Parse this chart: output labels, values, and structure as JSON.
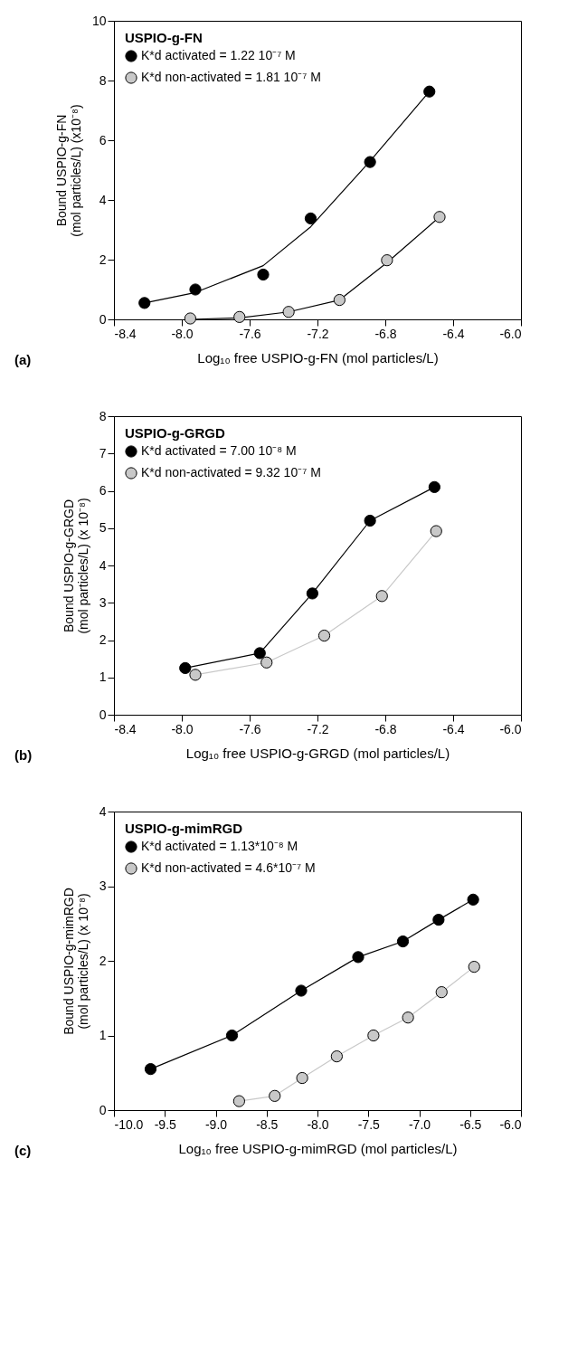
{
  "chart_data": [
    {
      "type": "scatter",
      "xlabel": "Log₁₀ free USPIO-g-FN (mol particles/L)",
      "ylabel": "Bound USPIO-g-FN\n(mol particles/L) (x10⁻⁸)",
      "legend_title": "USPIO-g-FN",
      "legend": "top left",
      "marker": "circle",
      "grid": false,
      "xlim": [
        -8.4,
        -6.0
      ],
      "xticks": [
        {
          "value": -8.4,
          "label": "-8.4"
        },
        {
          "value": -8.0,
          "label": "-8.0"
        },
        {
          "value": -7.6,
          "label": "-7.6"
        },
        {
          "value": -7.2,
          "label": "-7.2"
        },
        {
          "value": -6.8,
          "label": "-6.8"
        },
        {
          "value": -6.4,
          "label": "-6.4"
        },
        {
          "value": -6.0,
          "label": "-6.0"
        }
      ],
      "ylim": [
        0,
        10
      ],
      "yticks": [
        0,
        2,
        4,
        6,
        8,
        10
      ],
      "annotations": [
        "(a)"
      ],
      "series": [
        {
          "name": "K*d activated = 1.22 10⁻⁷ M",
          "type": "scatter",
          "color": "#000000",
          "x": [
            -8.22,
            -7.92,
            -7.52,
            -7.24,
            -6.89,
            -6.54
          ],
          "values": [
            0.55,
            1.0,
            1.5,
            3.38,
            5.27,
            7.63
          ]
        },
        {
          "name": "K*d non-activated = 1.81 10⁻⁷ M",
          "type": "scatter",
          "color": "#c8c8c8",
          "x": [
            -7.95,
            -7.66,
            -7.37,
            -7.07,
            -6.79,
            -6.48
          ],
          "values": [
            0.03,
            0.08,
            0.25,
            0.65,
            1.98,
            3.43
          ]
        },
        {
          "type": "line",
          "marker": "none",
          "color": "#000000",
          "x": [
            -8.22,
            -7.92,
            -7.52,
            -7.24,
            -6.89,
            -6.54
          ],
          "values": [
            0.55,
            0.9,
            1.8,
            3.1,
            5.3,
            7.63
          ]
        },
        {
          "type": "line",
          "marker": "none",
          "color": "#000000",
          "x": [
            -7.95,
            -7.66,
            -7.37,
            -7.07,
            -6.79,
            -6.48
          ],
          "values": [
            0.0,
            0.05,
            0.25,
            0.65,
            1.9,
            3.43
          ]
        }
      ]
    },
    {
      "type": "line",
      "xlabel": "Log₁₀ free USPIO-g-GRGD (mol particles/L)",
      "ylabel": "Bound USPIO-g-GRGD\n(mol particles/L) (x 10⁻⁸)",
      "legend_title": "USPIO-g-GRGD",
      "legend": "top left",
      "marker": "circle",
      "grid": false,
      "xlim": [
        -8.4,
        -6.0
      ],
      "xticks": [
        {
          "value": -8.4,
          "label": "-8.4"
        },
        {
          "value": -8.0,
          "label": "-8.0"
        },
        {
          "value": -7.6,
          "label": "-7.6"
        },
        {
          "value": -7.2,
          "label": "-7.2"
        },
        {
          "value": -6.8,
          "label": "-6.8"
        },
        {
          "value": -6.4,
          "label": "-6.4"
        },
        {
          "value": -6.0,
          "label": "-6.0"
        }
      ],
      "ylim": [
        0,
        8
      ],
      "yticks": [
        0,
        1,
        2,
        3,
        4,
        5,
        6,
        7,
        8
      ],
      "annotations": [
        "(b)"
      ],
      "series": [
        {
          "name": "K*d activated = 7.00 10⁻⁸ M",
          "color": "#000000",
          "x": [
            -7.98,
            -7.54,
            -7.23,
            -6.89,
            -6.51
          ],
          "values": [
            1.25,
            1.65,
            3.25,
            5.2,
            6.1
          ]
        },
        {
          "name": "K*d non-activated = 9.32 10⁻⁷ M",
          "color": "#c8c8c8",
          "x": [
            -7.92,
            -7.5,
            -7.16,
            -6.82,
            -6.5
          ],
          "values": [
            1.07,
            1.4,
            2.12,
            3.18,
            4.92
          ]
        }
      ]
    },
    {
      "type": "line",
      "xlabel": "Log₁₀ free USPIO-g-mimRGD (mol particles/L)",
      "ylabel": "Bound USPIO-g-mimRGD\n(mol particles/L) (x 10⁻⁸)",
      "legend_title": "USPIO-g-mimRGD",
      "legend": "top left",
      "marker": "circle",
      "grid": false,
      "xlim": [
        -10.0,
        -6.0
      ],
      "xticks": [
        {
          "value": -10.0,
          "label": "-10.0"
        },
        {
          "value": -9.5,
          "label": "-9.5"
        },
        {
          "value": -9.0,
          "label": "-9.0"
        },
        {
          "value": -8.5,
          "label": "-8.5"
        },
        {
          "value": -8.0,
          "label": "-8.0"
        },
        {
          "value": -7.5,
          "label": "-7.5"
        },
        {
          "value": -7.0,
          "label": "-7.0"
        },
        {
          "value": -6.5,
          "label": "-6.5"
        },
        {
          "value": -6.0,
          "label": "-6.0"
        }
      ],
      "ylim": [
        0,
        4
      ],
      "yticks": [
        0,
        1,
        2,
        3,
        4
      ],
      "annotations": [
        "(c)"
      ],
      "series": [
        {
          "name": "K*d activated = 1.13*10⁻⁸ M",
          "color": "#000000",
          "x": [
            -9.64,
            -8.84,
            -8.16,
            -7.6,
            -7.16,
            -6.81,
            -6.47
          ],
          "values": [
            0.55,
            1.0,
            1.6,
            2.05,
            2.26,
            2.55,
            2.82
          ]
        },
        {
          "name": "K*d non-activated = 4.6*10⁻⁷ M",
          "color": "#c8c8c8",
          "x": [
            -8.77,
            -8.42,
            -8.15,
            -7.81,
            -7.45,
            -7.11,
            -6.78,
            -6.46
          ],
          "values": [
            0.12,
            0.19,
            0.43,
            0.72,
            1.0,
            1.24,
            1.58,
            1.92
          ]
        }
      ]
    }
  ]
}
